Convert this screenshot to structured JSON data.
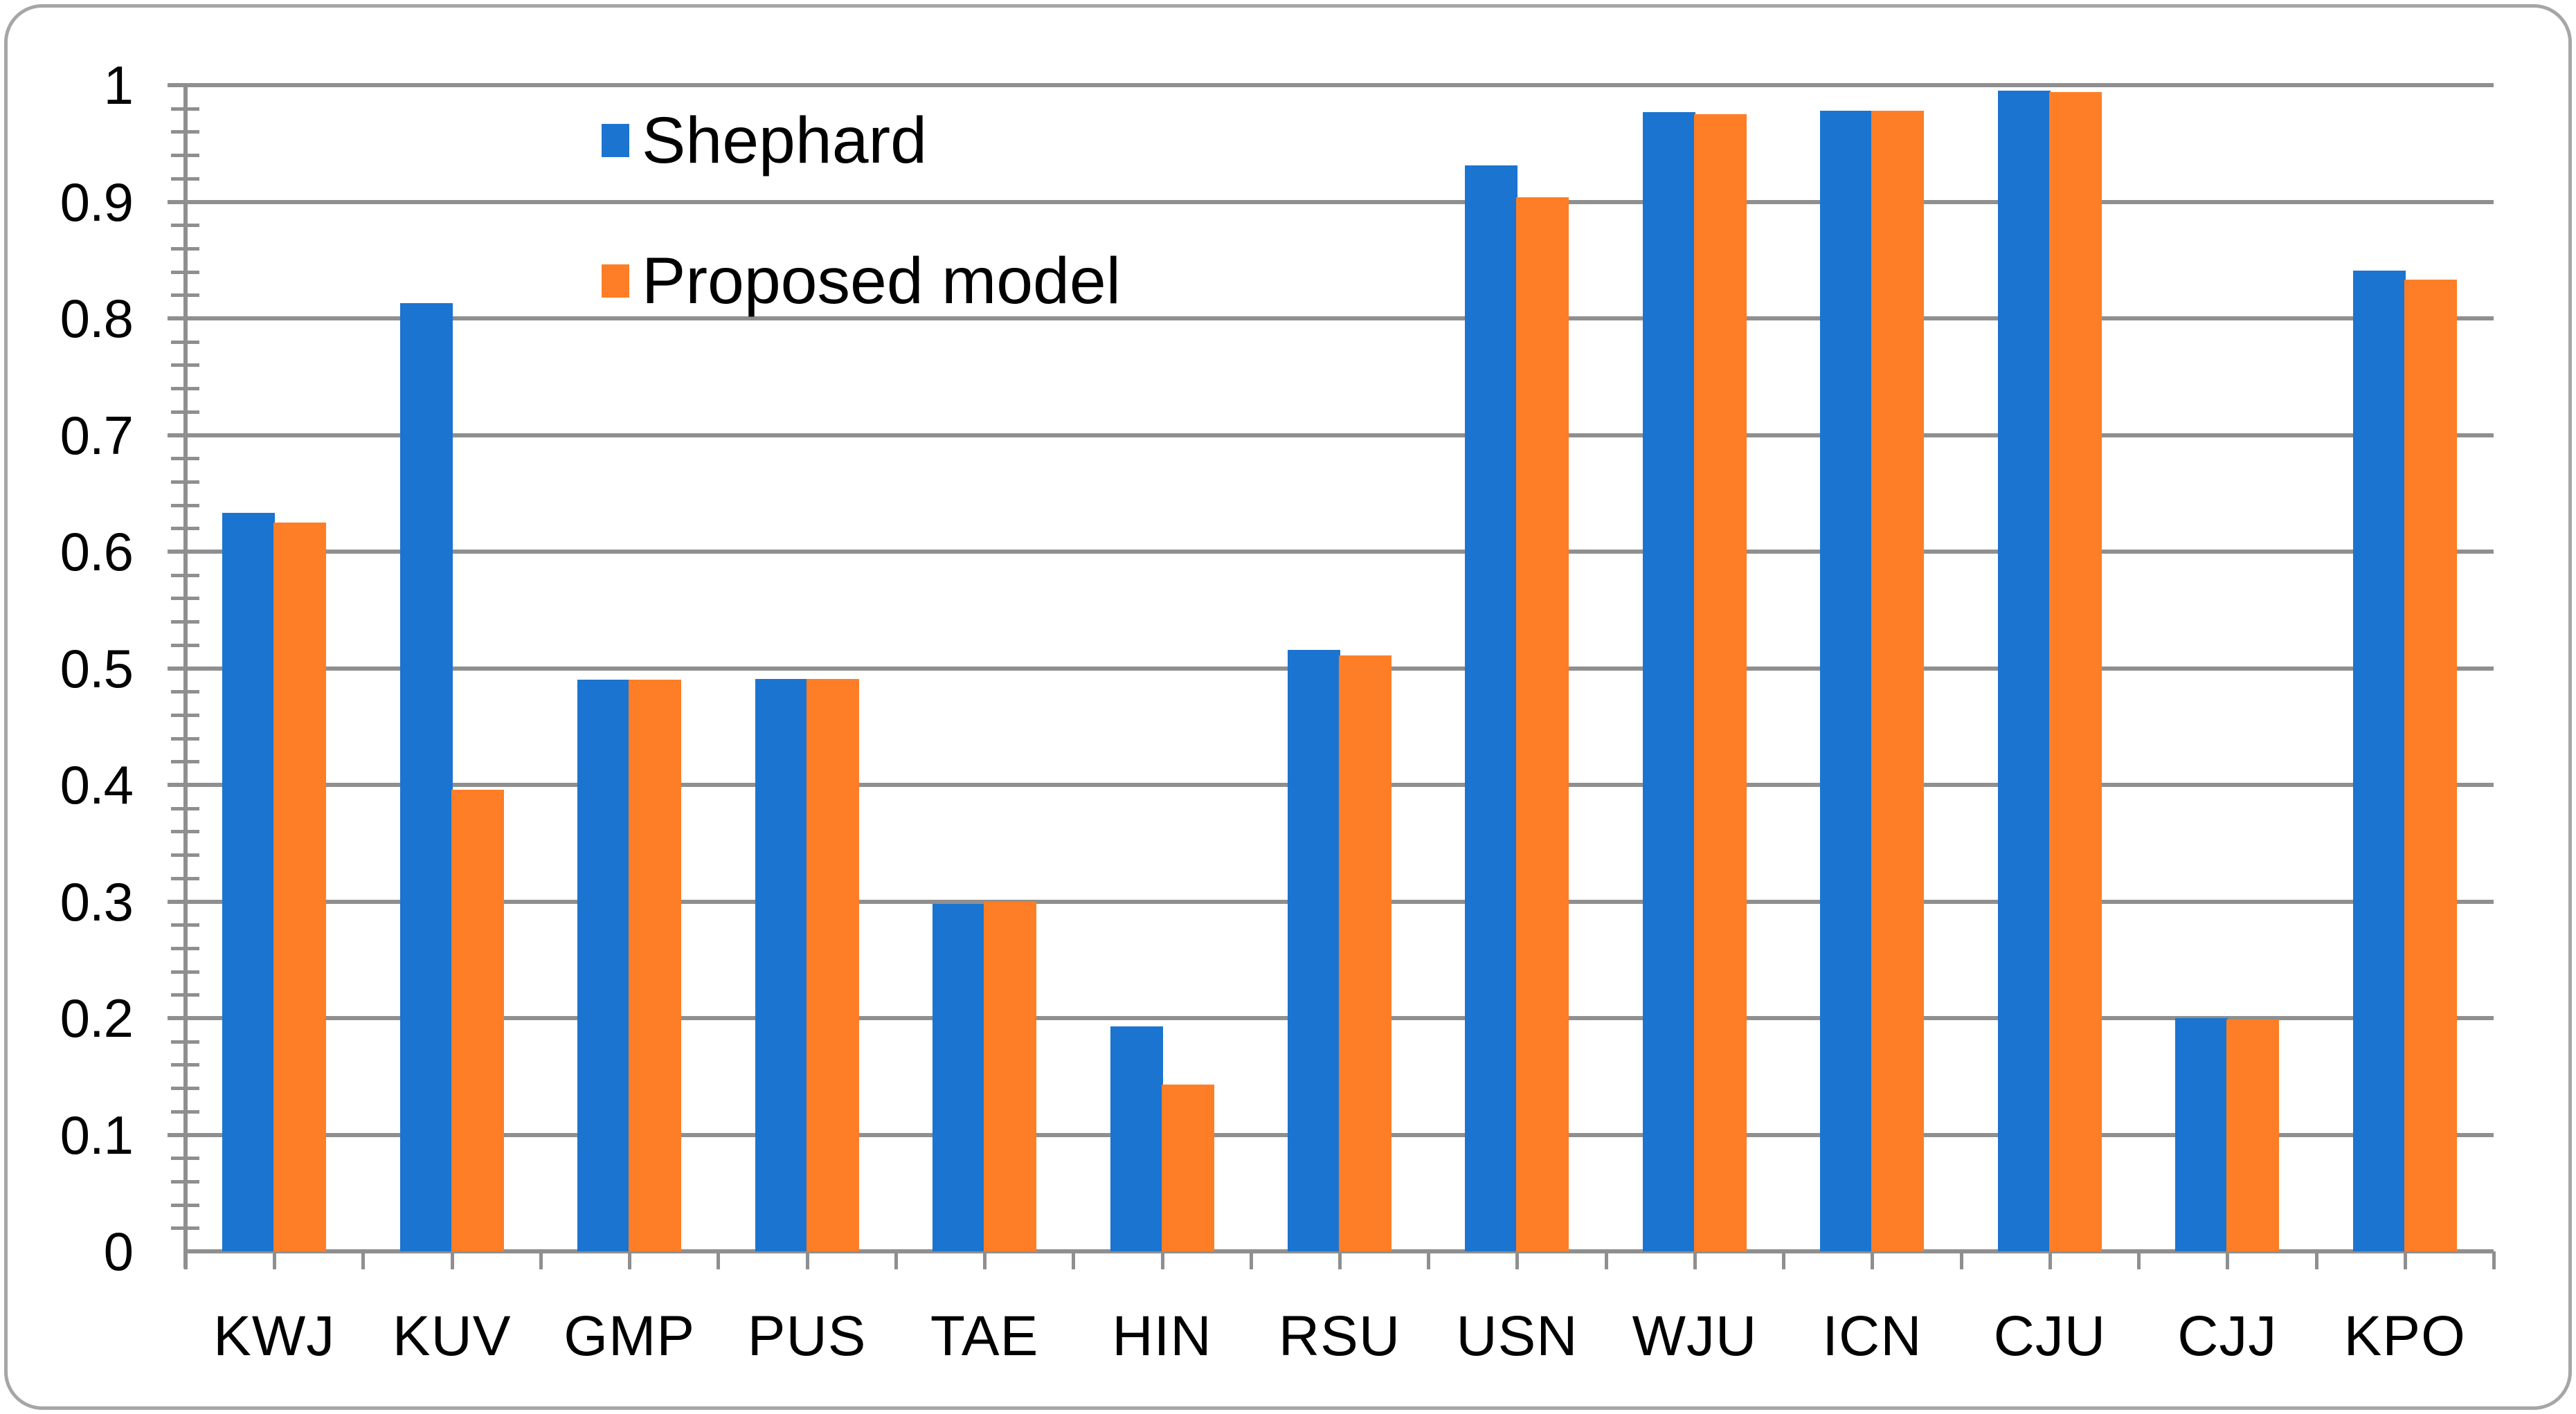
{
  "chart_data": {
    "type": "bar",
    "title": "",
    "xlabel": "",
    "ylabel": "",
    "categories": [
      "KWJ",
      "KUV",
      "GMP",
      "PUS",
      "TAE",
      "HIN",
      "RSU",
      "USN",
      "WJU",
      "ICN",
      "CJU",
      "CJJ",
      "KPO"
    ],
    "series": [
      {
        "name": "Shephard",
        "color": "#1B74CF",
        "values": [
          0.633,
          0.813,
          0.49,
          0.491,
          0.298,
          0.193,
          0.516,
          0.931,
          0.977,
          0.978,
          0.995,
          0.2,
          0.841
        ]
      },
      {
        "name": "Proposed model",
        "color": "#FD7E27",
        "values": [
          0.625,
          0.396,
          0.49,
          0.491,
          0.3,
          0.143,
          0.511,
          0.904,
          0.975,
          0.978,
          0.994,
          0.199,
          0.833
        ]
      }
    ],
    "ylim": [
      0,
      1
    ],
    "ytick_interval": 0.1,
    "ytick_labels": [
      "0",
      "0.1",
      "0.2",
      "0.3",
      "0.4",
      "0.5",
      "0.6",
      "0.7",
      "0.8",
      "0.9",
      "1"
    ],
    "y_minor_tick_interval": 0.02,
    "grid": "horizontal-major-on",
    "legend_position": "inside-top-left",
    "colors": {
      "axis": "#8F8F8F",
      "grid": "#8F8F8F",
      "frame_border": "#A6A6A6",
      "text": "#000000",
      "background": "#FFFFFF"
    }
  },
  "legend": {
    "items": [
      {
        "label": "Shephard"
      },
      {
        "label": "Proposed model"
      }
    ]
  }
}
